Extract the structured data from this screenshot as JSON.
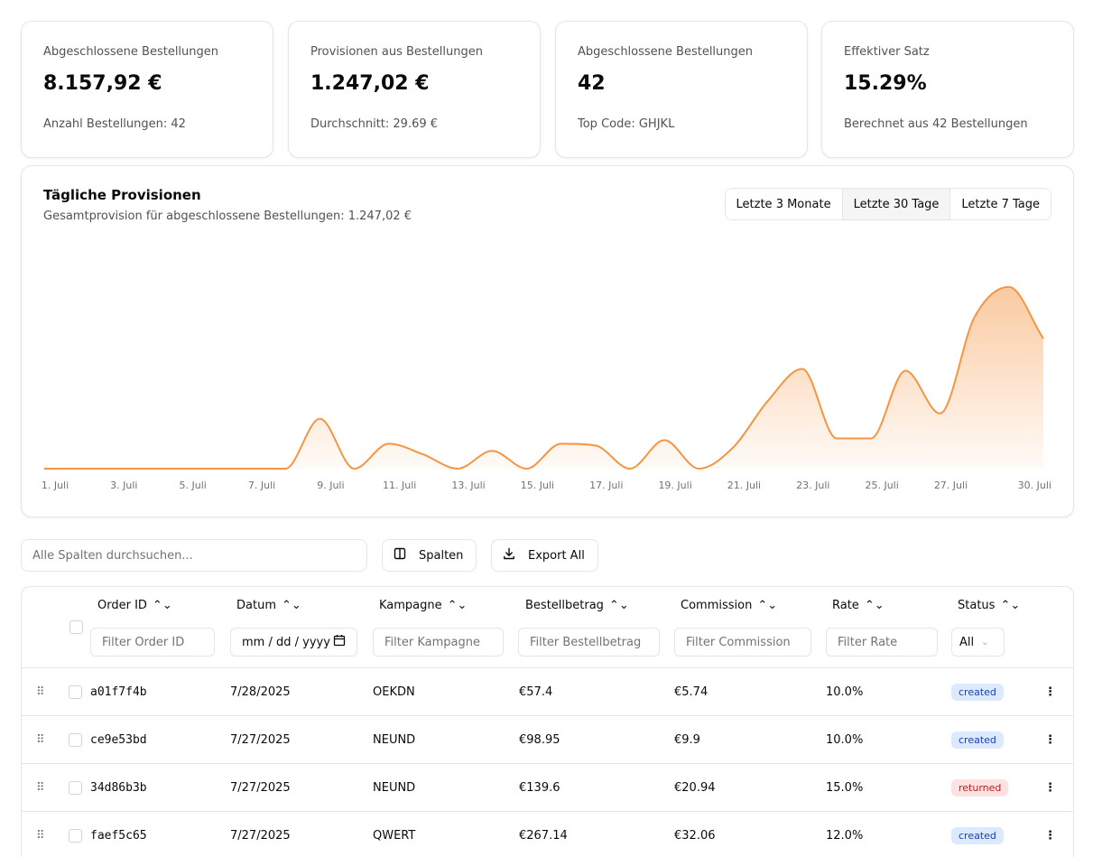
{
  "stats": [
    {
      "label": "Abgeschlossene Bestellungen",
      "value": "8.157,92 €",
      "footer": "Anzahl Bestellungen: 42"
    },
    {
      "label": "Provisionen aus Bestellungen",
      "value": "1.247,02 €",
      "footer": "Durchschnitt: 29.69 €"
    },
    {
      "label": "Abgeschlossene Bestellungen",
      "value": "42",
      "footer": "Top Code: GHJKL"
    },
    {
      "label": "Effektiver Satz",
      "value": "15.29%",
      "footer": "Berechnet aus 42 Bestellungen"
    }
  ],
  "chart": {
    "title": "Tägliche Provisionen",
    "subtitle": "Gesamtprovision für abgeschlossene Bestellungen: 1.247,02 €",
    "ranges": [
      "Letzte 3 Monate",
      "Letzte 30 Tage",
      "Letzte 7 Tage"
    ],
    "active_range": "Letzte 30 Tage"
  },
  "chart_data": {
    "type": "area",
    "xlabel": "",
    "ylabel": "",
    "x_tick_labels": [
      "1. Juli",
      "3. Juli",
      "5. Juli",
      "7. Juli",
      "9. Juli",
      "11. Juli",
      "13. Juli",
      "15. Juli",
      "17. Juli",
      "19. Juli",
      "21. Juli",
      "23. Juli",
      "25. Juli",
      "27. Juli",
      "30. Juli"
    ],
    "x": [
      "1. Juli",
      "2. Juli",
      "3. Juli",
      "4. Juli",
      "5. Juli",
      "6. Juli",
      "7. Juli",
      "8. Juli",
      "9. Juli",
      "10. Juli",
      "11. Juli",
      "12. Juli",
      "13. Juli",
      "14. Juli",
      "15. Juli",
      "16. Juli",
      "17. Juli",
      "18. Juli",
      "19. Juli",
      "20. Juli",
      "21. Juli",
      "22. Juli",
      "23. Juli",
      "24. Juli",
      "25. Juli",
      "26. Juli",
      "27. Juli",
      "28. Juli",
      "29. Juli",
      "30. Juli"
    ],
    "series": [
      {
        "values": [
          0,
          0,
          0,
          0,
          0,
          0,
          0,
          0,
          28,
          0,
          14,
          8,
          0,
          10,
          0,
          14,
          13,
          0,
          16,
          0,
          12,
          38,
          56,
          17,
          17,
          55,
          31,
          85,
          102,
          73
        ]
      }
    ],
    "ylim": [
      0,
      110
    ],
    "color": "#f59542",
    "grid": false,
    "legend": "none"
  },
  "toolbar": {
    "search_placeholder": "Alle Spalten durchsuchen...",
    "columns_label": "Spalten",
    "export_label": "Export All"
  },
  "table": {
    "headers": [
      "Order ID",
      "Datum",
      "Kampagne",
      "Bestellbetrag",
      "Commission",
      "Rate",
      "Status"
    ],
    "filters": [
      "Filter Order ID",
      "mm / dd / yyyy",
      "Filter Kampagne",
      "Filter Bestellbetrag",
      "Filter Commission",
      "Filter Rate",
      "All"
    ],
    "rows": [
      {
        "id": "a01f7f4b",
        "date": "7/28/2025",
        "campaign": "OEKDN",
        "amount": "€57.4",
        "commission": "€5.74",
        "rate": "10.0%",
        "status": "created"
      },
      {
        "id": "ce9e53bd",
        "date": "7/27/2025",
        "campaign": "NEUND",
        "amount": "€98.95",
        "commission": "€9.9",
        "rate": "10.0%",
        "status": "created"
      },
      {
        "id": "34d86b3b",
        "date": "7/27/2025",
        "campaign": "NEUND",
        "amount": "€139.6",
        "commission": "€20.94",
        "rate": "15.0%",
        "status": "returned"
      },
      {
        "id": "faef5c65",
        "date": "7/27/2025",
        "campaign": "QWERT",
        "amount": "€267.14",
        "commission": "€32.06",
        "rate": "12.0%",
        "status": "created"
      }
    ]
  }
}
